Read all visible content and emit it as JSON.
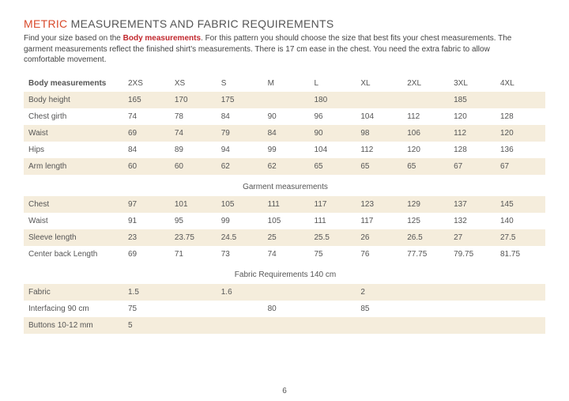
{
  "title": {
    "metric": "METRIC",
    "rest": "MEASUREMENTS AND FABRIC REQUIREMENTS"
  },
  "intro": {
    "p1a": "Find your size based on the ",
    "bold": "Body measurements",
    "p1b": ". For this pattern you should choose the size that best fits your chest measurements. The garment measurements reflect the finished shirt's measurements. There is 17 cm ease in the chest. You need the extra fabric to allow comfortable movement."
  },
  "sizes": [
    "2XS",
    "XS",
    "S",
    "M",
    "L",
    "XL",
    "2XL",
    "3XL",
    "4XL"
  ],
  "sections": {
    "body": {
      "label": "Body measurements",
      "rows": [
        {
          "label": "Body height",
          "cells": [
            {
              "span": 1,
              "v": "165"
            },
            {
              "span": 1,
              "v": "170"
            },
            {
              "span": 2,
              "v": "175"
            },
            {
              "span": 3,
              "v": "180"
            },
            {
              "span": 2,
              "v": "185"
            }
          ]
        },
        {
          "label": "Chest girth",
          "cells": [
            {
              "span": 1,
              "v": "74"
            },
            {
              "span": 1,
              "v": "78"
            },
            {
              "span": 1,
              "v": "84"
            },
            {
              "span": 1,
              "v": "90"
            },
            {
              "span": 1,
              "v": "96"
            },
            {
              "span": 1,
              "v": "104"
            },
            {
              "span": 1,
              "v": "112"
            },
            {
              "span": 1,
              "v": "120"
            },
            {
              "span": 1,
              "v": "128"
            }
          ]
        },
        {
          "label": "Waist",
          "cells": [
            {
              "span": 1,
              "v": "69"
            },
            {
              "span": 1,
              "v": "74"
            },
            {
              "span": 1,
              "v": "79"
            },
            {
              "span": 1,
              "v": "84"
            },
            {
              "span": 1,
              "v": "90"
            },
            {
              "span": 1,
              "v": "98"
            },
            {
              "span": 1,
              "v": "106"
            },
            {
              "span": 1,
              "v": "112"
            },
            {
              "span": 1,
              "v": "120"
            }
          ]
        },
        {
          "label": "Hips",
          "cells": [
            {
              "span": 1,
              "v": "84"
            },
            {
              "span": 1,
              "v": "89"
            },
            {
              "span": 1,
              "v": "94"
            },
            {
              "span": 1,
              "v": "99"
            },
            {
              "span": 1,
              "v": "104"
            },
            {
              "span": 1,
              "v": "112"
            },
            {
              "span": 1,
              "v": "120"
            },
            {
              "span": 1,
              "v": "128"
            },
            {
              "span": 1,
              "v": "136"
            }
          ]
        },
        {
          "label": "Arm length",
          "cells": [
            {
              "span": 1,
              "v": "60"
            },
            {
              "span": 1,
              "v": "60"
            },
            {
              "span": 1,
              "v": "62"
            },
            {
              "span": 1,
              "v": "62"
            },
            {
              "span": 1,
              "v": "65"
            },
            {
              "span": 1,
              "v": "65"
            },
            {
              "span": 1,
              "v": "65"
            },
            {
              "span": 1,
              "v": "67"
            },
            {
              "span": 1,
              "v": "67"
            }
          ]
        }
      ]
    },
    "garment": {
      "label": "Garment measurements",
      "rows": [
        {
          "label": "Chest",
          "cells": [
            {
              "span": 1,
              "v": "97"
            },
            {
              "span": 1,
              "v": "101"
            },
            {
              "span": 1,
              "v": "105"
            },
            {
              "span": 1,
              "v": "111"
            },
            {
              "span": 1,
              "v": "117"
            },
            {
              "span": 1,
              "v": "123"
            },
            {
              "span": 1,
              "v": "129"
            },
            {
              "span": 1,
              "v": "137"
            },
            {
              "span": 1,
              "v": "145"
            }
          ]
        },
        {
          "label": "Waist",
          "cells": [
            {
              "span": 1,
              "v": "91"
            },
            {
              "span": 1,
              "v": "95"
            },
            {
              "span": 1,
              "v": "99"
            },
            {
              "span": 1,
              "v": "105"
            },
            {
              "span": 1,
              "v": "111"
            },
            {
              "span": 1,
              "v": "117"
            },
            {
              "span": 1,
              "v": "125"
            },
            {
              "span": 1,
              "v": "132"
            },
            {
              "span": 1,
              "v": "140"
            }
          ]
        },
        {
          "label": "Sleeve length",
          "cells": [
            {
              "span": 1,
              "v": "23"
            },
            {
              "span": 1,
              "v": "23.75"
            },
            {
              "span": 1,
              "v": "24.5"
            },
            {
              "span": 1,
              "v": "25"
            },
            {
              "span": 1,
              "v": "25.5"
            },
            {
              "span": 1,
              "v": "26"
            },
            {
              "span": 1,
              "v": "26.5"
            },
            {
              "span": 1,
              "v": "27"
            },
            {
              "span": 1,
              "v": "27.5"
            }
          ]
        },
        {
          "label": "Center back Length",
          "cells": [
            {
              "span": 1,
              "v": "69"
            },
            {
              "span": 1,
              "v": "71"
            },
            {
              "span": 1,
              "v": "73"
            },
            {
              "span": 1,
              "v": "74"
            },
            {
              "span": 1,
              "v": "75"
            },
            {
              "span": 1,
              "v": "76"
            },
            {
              "span": 1,
              "v": "77.75"
            },
            {
              "span": 1,
              "v": "79.75"
            },
            {
              "span": 1,
              "v": "81.75"
            }
          ]
        }
      ]
    },
    "fabric": {
      "label": "Fabric Requirements 140 cm",
      "rows": [
        {
          "label": "Fabric",
          "cells": [
            {
              "span": 2,
              "v": "1.5"
            },
            {
              "span": 3,
              "v": "1.6"
            },
            {
              "span": 4,
              "v": "2"
            }
          ]
        },
        {
          "label": "Interfacing 90 cm",
          "cells": [
            {
              "span": 3,
              "v": "75"
            },
            {
              "span": 2,
              "v": "80"
            },
            {
              "span": 4,
              "v": "85"
            }
          ]
        },
        {
          "label": "Buttons 10-12 mm",
          "cells": [
            {
              "span": 9,
              "v": "5"
            }
          ]
        }
      ]
    }
  },
  "pageNumber": "6",
  "colors": {
    "stripe": "#f5eddc",
    "accent": "#c1272d",
    "titleAccent": "#d94a2b"
  }
}
